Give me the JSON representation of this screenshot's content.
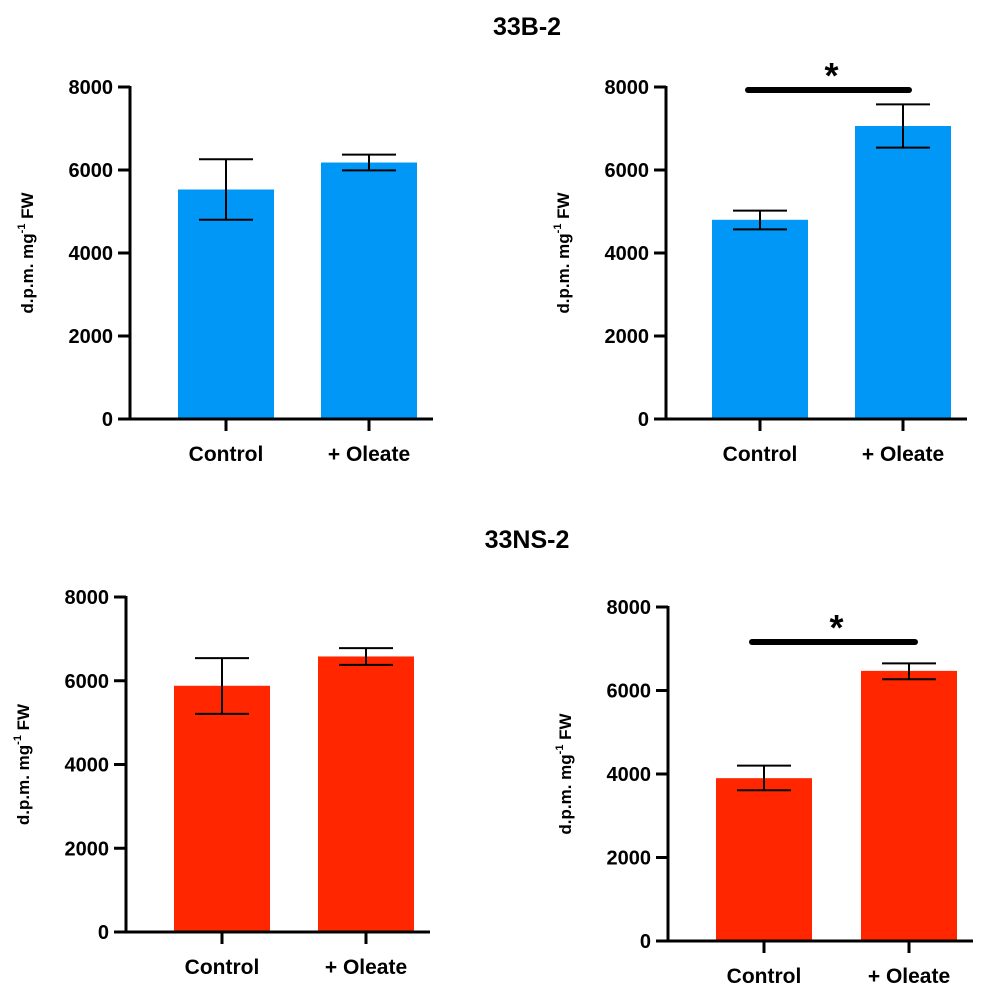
{
  "group_titles": [
    "33B-2",
    "33NS-2"
  ],
  "chart_data": [
    {
      "type": "bar",
      "group": "33B-2",
      "categories": [
        "Control",
        "+ Oleate"
      ],
      "values": [
        5530,
        6180
      ],
      "error": [
        [
          4800,
          6260
        ],
        [
          5990,
          6370
        ]
      ],
      "ylabel": "d.p.m. mg",
      "ylabel_sup": "-1",
      "ylabel_suffix": " FW",
      "ylim": [
        0,
        8000
      ],
      "yticks": [
        0,
        2000,
        4000,
        6000,
        8000
      ],
      "color": "#0197F6",
      "significance": ""
    },
    {
      "type": "bar",
      "group": "33B-2",
      "categories": [
        "Control",
        "+ Oleate"
      ],
      "values": [
        4800,
        7060
      ],
      "error": [
        [
          4570,
          5020
        ],
        [
          6540,
          7580
        ]
      ],
      "ylabel": "d.p.m. mg",
      "ylabel_sup": "-1",
      "ylabel_suffix": " FW",
      "ylim": [
        0,
        8000
      ],
      "yticks": [
        0,
        2000,
        4000,
        6000,
        8000
      ],
      "color": "#0197F6",
      "significance": "*"
    },
    {
      "type": "bar",
      "group": "33NS-2",
      "categories": [
        "Control",
        "+ Oleate"
      ],
      "values": [
        5880,
        6580
      ],
      "error": [
        [
          5210,
          6540
        ],
        [
          6380,
          6780
        ]
      ],
      "ylabel": "d.p.m. mg",
      "ylabel_sup": "-1",
      "ylabel_suffix": " FW",
      "ylim": [
        0,
        8000
      ],
      "yticks": [
        0,
        2000,
        4000,
        6000,
        8000
      ],
      "color": "#FF2600",
      "significance": ""
    },
    {
      "type": "bar",
      "group": "33NS-2",
      "categories": [
        "Control",
        "+ Oleate"
      ],
      "values": [
        3900,
        6470
      ],
      "error": [
        [
          3610,
          4200
        ],
        [
          6270,
          6650
        ]
      ],
      "ylabel": "d.p.m. mg",
      "ylabel_sup": "-1",
      "ylabel_suffix": " FW",
      "ylim": [
        0,
        8000
      ],
      "yticks": [
        0,
        2000,
        4000,
        6000,
        8000
      ],
      "color": "#FF2600",
      "significance": "*"
    }
  ]
}
